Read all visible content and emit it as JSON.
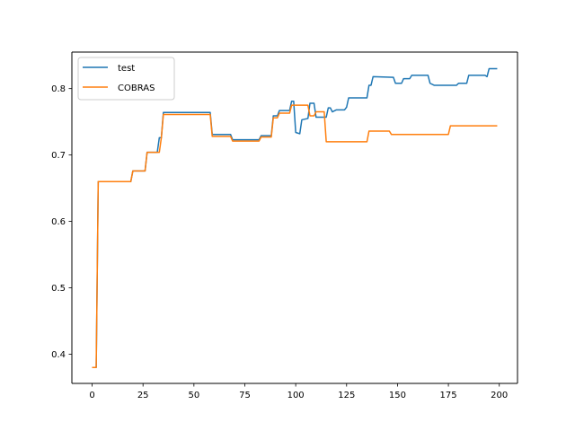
{
  "chart_data": {
    "type": "line",
    "xlim": [
      -9.95,
      208.95
    ],
    "ylim": [
      0.356,
      0.855
    ],
    "x_ticks": [
      0,
      25,
      50,
      75,
      100,
      125,
      150,
      175,
      200
    ],
    "y_ticks": [
      0.4,
      0.5,
      0.6,
      0.7,
      0.8
    ],
    "x_tick_labels": [
      "0",
      "25",
      "50",
      "75",
      "100",
      "125",
      "150",
      "175",
      "200"
    ],
    "y_tick_labels": [
      "0.4",
      "0.5",
      "0.6",
      "0.7",
      "0.8"
    ],
    "grid": false,
    "legend_position": "top-left",
    "series": [
      {
        "name": "test",
        "color": "#1f77b4",
        "points": [
          [
            0,
            0.38
          ],
          [
            2,
            0.38
          ],
          [
            3,
            0.66
          ],
          [
            19,
            0.66
          ],
          [
            20,
            0.676
          ],
          [
            26,
            0.676
          ],
          [
            27,
            0.704
          ],
          [
            32,
            0.704
          ],
          [
            33,
            0.726
          ],
          [
            34,
            0.726
          ],
          [
            35,
            0.764
          ],
          [
            58,
            0.764
          ],
          [
            59,
            0.731
          ],
          [
            68,
            0.731
          ],
          [
            69,
            0.723
          ],
          [
            82,
            0.723
          ],
          [
            83,
            0.729
          ],
          [
            88,
            0.729
          ],
          [
            89,
            0.759
          ],
          [
            91,
            0.759
          ],
          [
            92,
            0.767
          ],
          [
            97,
            0.767
          ],
          [
            98,
            0.781
          ],
          [
            99,
            0.781
          ],
          [
            100,
            0.734
          ],
          [
            102,
            0.732
          ],
          [
            103,
            0.753
          ],
          [
            106,
            0.755
          ],
          [
            107,
            0.778
          ],
          [
            109,
            0.778
          ],
          [
            110,
            0.757
          ],
          [
            115,
            0.757
          ],
          [
            116,
            0.771
          ],
          [
            117,
            0.771
          ],
          [
            118,
            0.765
          ],
          [
            120,
            0.768
          ],
          [
            124,
            0.768
          ],
          [
            125,
            0.772
          ],
          [
            126,
            0.786
          ],
          [
            135,
            0.786
          ],
          [
            136,
            0.805
          ],
          [
            137,
            0.805
          ],
          [
            138,
            0.818
          ],
          [
            148,
            0.817
          ],
          [
            149,
            0.808
          ],
          [
            152,
            0.808
          ],
          [
            153,
            0.815
          ],
          [
            156,
            0.815
          ],
          [
            157,
            0.82
          ],
          [
            165,
            0.82
          ],
          [
            166,
            0.808
          ],
          [
            168,
            0.805
          ],
          [
            179,
            0.805
          ],
          [
            180,
            0.808
          ],
          [
            184,
            0.808
          ],
          [
            185,
            0.82
          ],
          [
            193,
            0.82
          ],
          [
            194,
            0.818
          ],
          [
            195,
            0.83
          ],
          [
            199,
            0.83
          ]
        ]
      },
      {
        "name": "COBRAS",
        "color": "#ff7f0e",
        "points": [
          [
            0,
            0.38
          ],
          [
            2,
            0.38
          ],
          [
            3,
            0.66
          ],
          [
            19,
            0.66
          ],
          [
            20,
            0.676
          ],
          [
            26,
            0.676
          ],
          [
            27,
            0.704
          ],
          [
            33,
            0.704
          ],
          [
            34,
            0.726
          ],
          [
            35,
            0.761
          ],
          [
            58,
            0.761
          ],
          [
            59,
            0.728
          ],
          [
            68,
            0.728
          ],
          [
            69,
            0.721
          ],
          [
            82,
            0.721
          ],
          [
            83,
            0.727
          ],
          [
            88,
            0.727
          ],
          [
            89,
            0.756
          ],
          [
            91,
            0.756
          ],
          [
            92,
            0.763
          ],
          [
            97,
            0.763
          ],
          [
            98,
            0.775
          ],
          [
            106,
            0.775
          ],
          [
            107,
            0.759
          ],
          [
            109,
            0.759
          ],
          [
            110,
            0.765
          ],
          [
            114,
            0.765
          ],
          [
            115,
            0.72
          ],
          [
            135,
            0.72
          ],
          [
            136,
            0.736
          ],
          [
            146,
            0.736
          ],
          [
            147,
            0.731
          ],
          [
            175,
            0.731
          ],
          [
            176,
            0.744
          ],
          [
            199,
            0.744
          ]
        ]
      }
    ]
  }
}
